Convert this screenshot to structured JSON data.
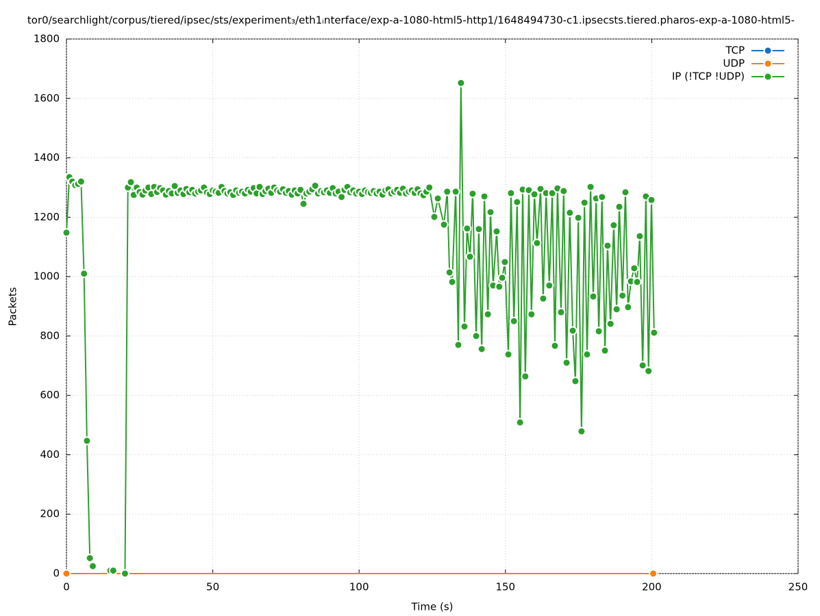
{
  "chart_data": {
    "type": "line",
    "title": "tor0/searchlight/corpus/tiered/ipsec/sts/experiment₃/eth1ᵢnterface/exp-a-1080-html5-http1/1648494730-c1.ipsecsts.tiered.pharos-exp-a-1080-html5-",
    "x_label": "Time (s)",
    "y_label": "Packets",
    "xlim": [
      0,
      250
    ],
    "xticks": [
      0,
      50,
      100,
      150,
      200,
      250
    ],
    "ylim": [
      0,
      1800
    ],
    "yticks": [
      0,
      200,
      400,
      600,
      800,
      1000,
      1200,
      1400,
      1600,
      1800
    ],
    "grid": true,
    "legend": "top-right",
    "series": [
      {
        "name": "TCP",
        "color": "#1f6fb4",
        "x": [
          0,
          200.5
        ],
        "values": [
          0,
          0
        ]
      },
      {
        "name": "UDP",
        "color": "#ff7f0e",
        "x": [
          0,
          200.5
        ],
        "values": [
          0,
          0
        ]
      },
      {
        "name": "IP (!TCP  !UDP)",
        "color": "#2ca02c",
        "x": [
          0,
          1,
          2,
          3,
          4,
          5,
          6,
          7,
          8,
          9,
          10,
          11,
          12,
          13,
          14,
          15,
          16,
          17,
          18,
          19,
          20,
          21,
          22,
          23,
          24,
          25,
          26,
          27,
          28,
          29,
          30,
          31,
          32,
          33,
          34,
          35,
          36,
          37,
          38,
          39,
          40,
          41,
          42,
          43,
          44,
          45,
          46,
          47,
          48,
          49,
          50,
          51,
          52,
          53,
          54,
          55,
          56,
          57,
          58,
          59,
          60,
          61,
          62,
          63,
          64,
          65,
          66,
          67,
          68,
          69,
          70,
          71,
          72,
          73,
          74,
          75,
          76,
          77,
          78,
          79,
          80,
          81,
          82,
          83,
          84,
          85,
          86,
          87,
          88,
          89,
          90,
          91,
          92,
          93,
          94,
          95,
          96,
          97,
          98,
          99,
          100,
          101,
          102,
          103,
          104,
          105,
          106,
          107,
          108,
          109,
          110,
          111,
          112,
          113,
          114,
          115,
          116,
          117,
          118,
          119,
          120,
          121,
          122,
          123,
          124,
          125.7,
          126.9,
          129,
          130.1,
          130.9,
          131.8,
          133,
          133.9,
          134.8,
          136,
          136.9,
          137.9,
          138.8,
          140,
          140.9,
          141.9,
          142.8,
          144,
          144.9,
          145.8,
          147,
          147.9,
          148.9,
          149.8,
          151,
          151.9,
          152.9,
          154,
          155,
          155.9,
          156.8,
          158,
          158.9,
          159.9,
          160.8,
          162,
          162.9,
          163.9,
          165,
          166,
          166.9,
          167.8,
          169,
          169.9,
          170.9,
          172,
          173,
          173.9,
          174.9,
          176,
          177,
          177.9,
          179.1,
          180,
          181,
          181.9,
          183,
          184,
          184.9,
          185.9,
          187,
          188,
          188.9,
          190,
          191,
          191.9,
          192.9,
          194,
          195,
          195.9,
          196.9,
          198,
          198.9,
          199.9,
          200.8
        ],
        "values": [
          1148,
          1335,
          1320,
          1308,
          1312,
          1320,
          1010,
          447,
          52,
          25,
          null,
          null,
          null,
          null,
          null,
          10,
          10,
          null,
          null,
          null,
          0,
          1300,
          1318,
          1275,
          1300,
          1285,
          1276,
          1290,
          1300,
          1278,
          1302,
          1285,
          1298,
          1290,
          1276,
          1288,
          1280,
          1305,
          1282,
          1290,
          1278,
          1295,
          1284,
          1292,
          1280,
          1286,
          1290,
          1300,
          1283,
          1278,
          1290,
          1286,
          1282,
          1302,
          1288,
          1280,
          1284,
          1275,
          1290,
          1282,
          1286,
          1280,
          1292,
          1286,
          1298,
          1280,
          1302,
          1278,
          1288,
          1296,
          1282,
          1300,
          1290,
          1286,
          1294,
          1282,
          1288,
          1276,
          1290,
          1280,
          1292,
          1245,
          1280,
          1286,
          1294,
          1306,
          1280,
          1288,
          1284,
          1290,
          1282,
          1298,
          1280,
          1286,
          1268,
          1292,
          1302,
          1284,
          1290,
          1280,
          1286,
          1278,
          1290,
          1284,
          1282,
          1288,
          1280,
          1286,
          1276,
          1290,
          1294,
          1280,
          1286,
          1292,
          1282,
          1296,
          1280,
          1286,
          1290,
          1282,
          1294,
          1280,
          1274,
          1286,
          1300,
          1201,
          1263,
          1175,
          1286,
          1014,
          982,
          1286,
          770,
          1652,
          832,
          1162,
          1067,
          1279,
          800,
          1160,
          756,
          1270,
          873,
          1217,
          970,
          1152,
          966,
          996,
          1049,
          738,
          1281,
          850,
          1251,
          509,
          1293,
          664,
          1291,
          873,
          1277,
          1113,
          1295,
          926,
          1281,
          970,
          1281,
          767,
          1297,
          880,
          1288,
          710,
          1215,
          818,
          648,
          1198,
          479,
          1249,
          738,
          1302,
          933,
          1263,
          816,
          1268,
          751,
          1104,
          841,
          1173,
          890,
          1235,
          936,
          1284,
          897,
          984,
          1028,
          982,
          1136,
          701,
          1270,
          682,
          1258,
          811
        ]
      }
    ]
  }
}
